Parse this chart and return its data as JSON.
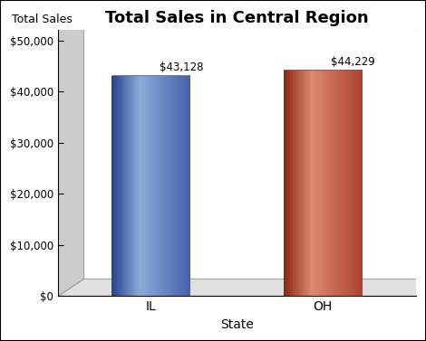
{
  "title": "Total Sales in Central Region",
  "title_fontsize": 13,
  "title_fontweight": "bold",
  "xlabel": "State",
  "ylabel": "Total Sales",
  "categories": [
    "IL",
    "OH"
  ],
  "values": [
    43128,
    44229
  ],
  "bar_colors_main": [
    "#5570B8",
    "#C05540"
  ],
  "bar_colors_light": [
    "#8BAAD8",
    "#DD8870"
  ],
  "bar_colors_dark": [
    "#2A4490",
    "#8B2810"
  ],
  "annotations": [
    "$43,128",
    "$44,229"
  ],
  "ylim": [
    0,
    52000
  ],
  "yticks": [
    0,
    10000,
    20000,
    30000,
    40000,
    50000
  ],
  "ytick_labels": [
    "$0",
    "$10,000",
    "$20,000",
    "$30,000",
    "$40,000",
    "$50,000"
  ],
  "bg_color": "#FFFFFF",
  "plot_bg_color": "#FFFFFF",
  "box_side_color": "#CCCCCC",
  "box_floor_color": "#E0E0E0",
  "border_color": "#000000",
  "bar_positions": [
    0.65,
    1.85
  ],
  "bar_width": 0.55,
  "xlim": [
    0.0,
    2.5
  ],
  "n_gradient_strips": 60,
  "ellipse_height_ratio": 0.12
}
